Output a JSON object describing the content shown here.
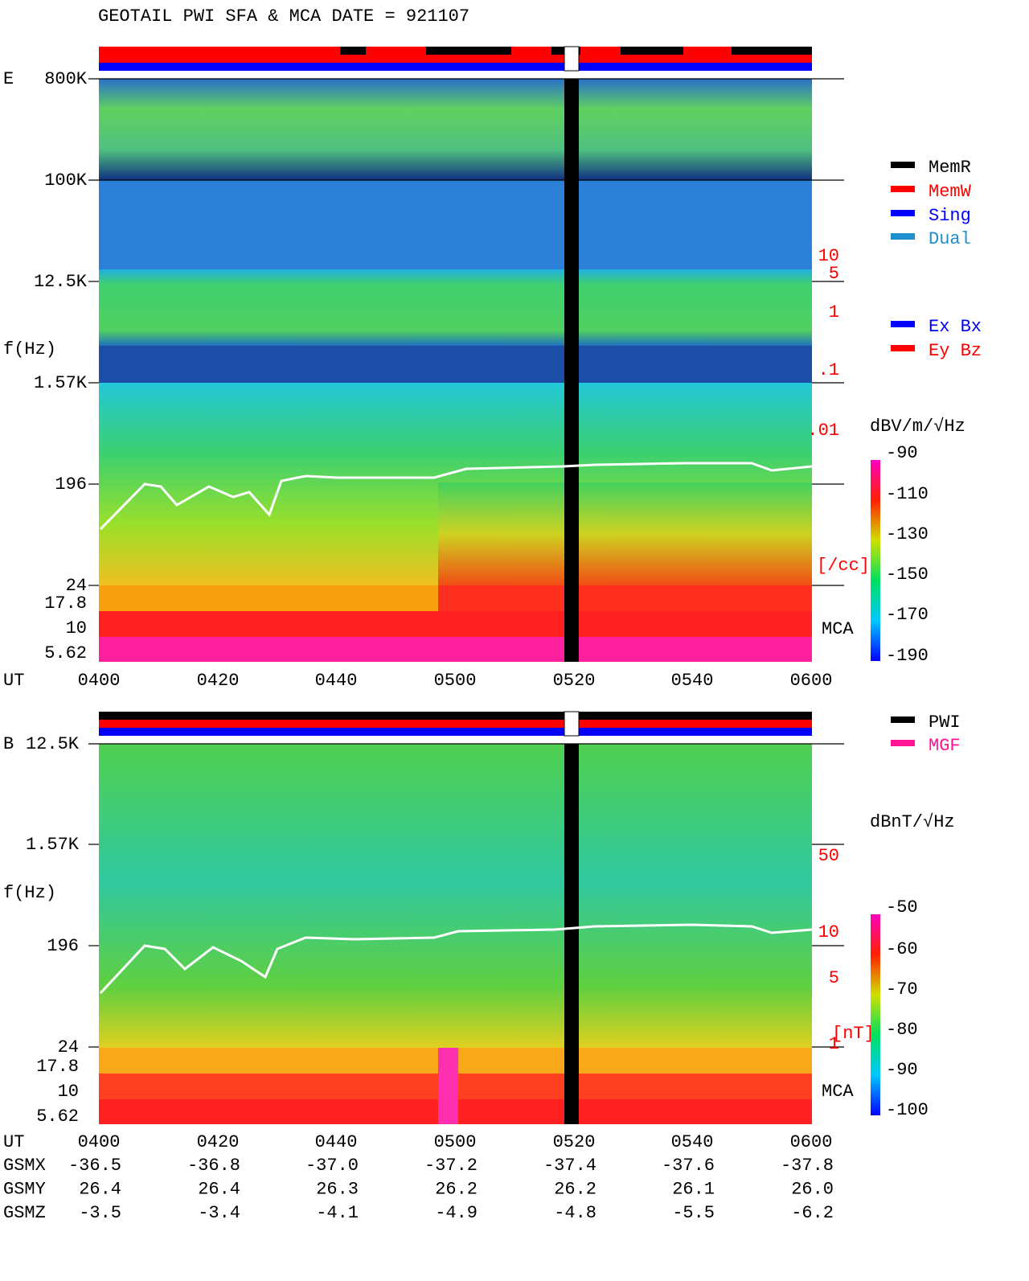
{
  "header": {
    "title": "GEOTAIL  PWI SFA & MCA   DATE = 921107"
  },
  "e_panel": {
    "label": "E",
    "y_axis_label": "f(Hz)",
    "freq_labels": [
      "800K",
      "100K",
      "12.5K",
      "1.57K",
      "196",
      "24",
      "17.8",
      "10",
      "5.62"
    ],
    "density_labels": [
      "10",
      "5",
      "1",
      ".1",
      ".01"
    ],
    "density_unit": "[/cc]",
    "mca_label": "MCA",
    "colorbar_unit": "dBV/m/√Hz",
    "colorbar_labels": [
      "-90",
      "-110",
      "-130",
      "-150",
      "-170",
      "-190"
    ],
    "legend": [
      {
        "label": "MemR",
        "color": "#000000"
      },
      {
        "label": "MemW",
        "color": "#ff0000"
      },
      {
        "label": "Sing",
        "color": "#0000ff"
      },
      {
        "label": "Dual",
        "color": "#1f8fd0"
      }
    ],
    "legend2": [
      {
        "label": "Ex Bx",
        "color": "#0000ff"
      },
      {
        "label": "Ey Bz",
        "color": "#ff0000"
      }
    ]
  },
  "e_time_axis": {
    "label": "UT",
    "labels": [
      "0400",
      "0420",
      "0440",
      "0500",
      "0520",
      "0540",
      "0600"
    ]
  },
  "b_panel": {
    "label": "B",
    "y_axis_label": "f(Hz)",
    "freq_labels": [
      "12.5K",
      "1.57K",
      "196",
      "24",
      "17.8",
      "10",
      "5.62"
    ],
    "field_labels": [
      "50",
      "10",
      "5",
      "1"
    ],
    "field_unit": "[nT]",
    "mca_label": "MCA",
    "colorbar_unit": "dBnT/√Hz",
    "colorbar_labels": [
      "-50",
      "-60",
      "-70",
      "-80",
      "-90",
      "-100"
    ],
    "legend": [
      {
        "label": "PWI",
        "color": "#000000"
      },
      {
        "label": "MGF",
        "color": "#ff1493"
      }
    ]
  },
  "b_time_axis": {
    "label": "UT",
    "labels": [
      "0400",
      "0420",
      "0440",
      "0500",
      "0520",
      "0540",
      "0600"
    ]
  },
  "orbit": {
    "rows": [
      {
        "label": "GSMX",
        "values": [
          "-36.5",
          "-36.8",
          "-37.0",
          "-37.2",
          "-37.4",
          "-37.6",
          "-37.8"
        ]
      },
      {
        "label": "GSMY",
        "values": [
          "26.4",
          "26.4",
          "26.3",
          "26.2",
          "26.2",
          "26.1",
          "26.0"
        ]
      },
      {
        "label": "GSMZ",
        "values": [
          "-3.5",
          "-3.4",
          "-4.1",
          "-4.9",
          "-4.8",
          "-5.5",
          "-6.2"
        ]
      }
    ]
  }
}
